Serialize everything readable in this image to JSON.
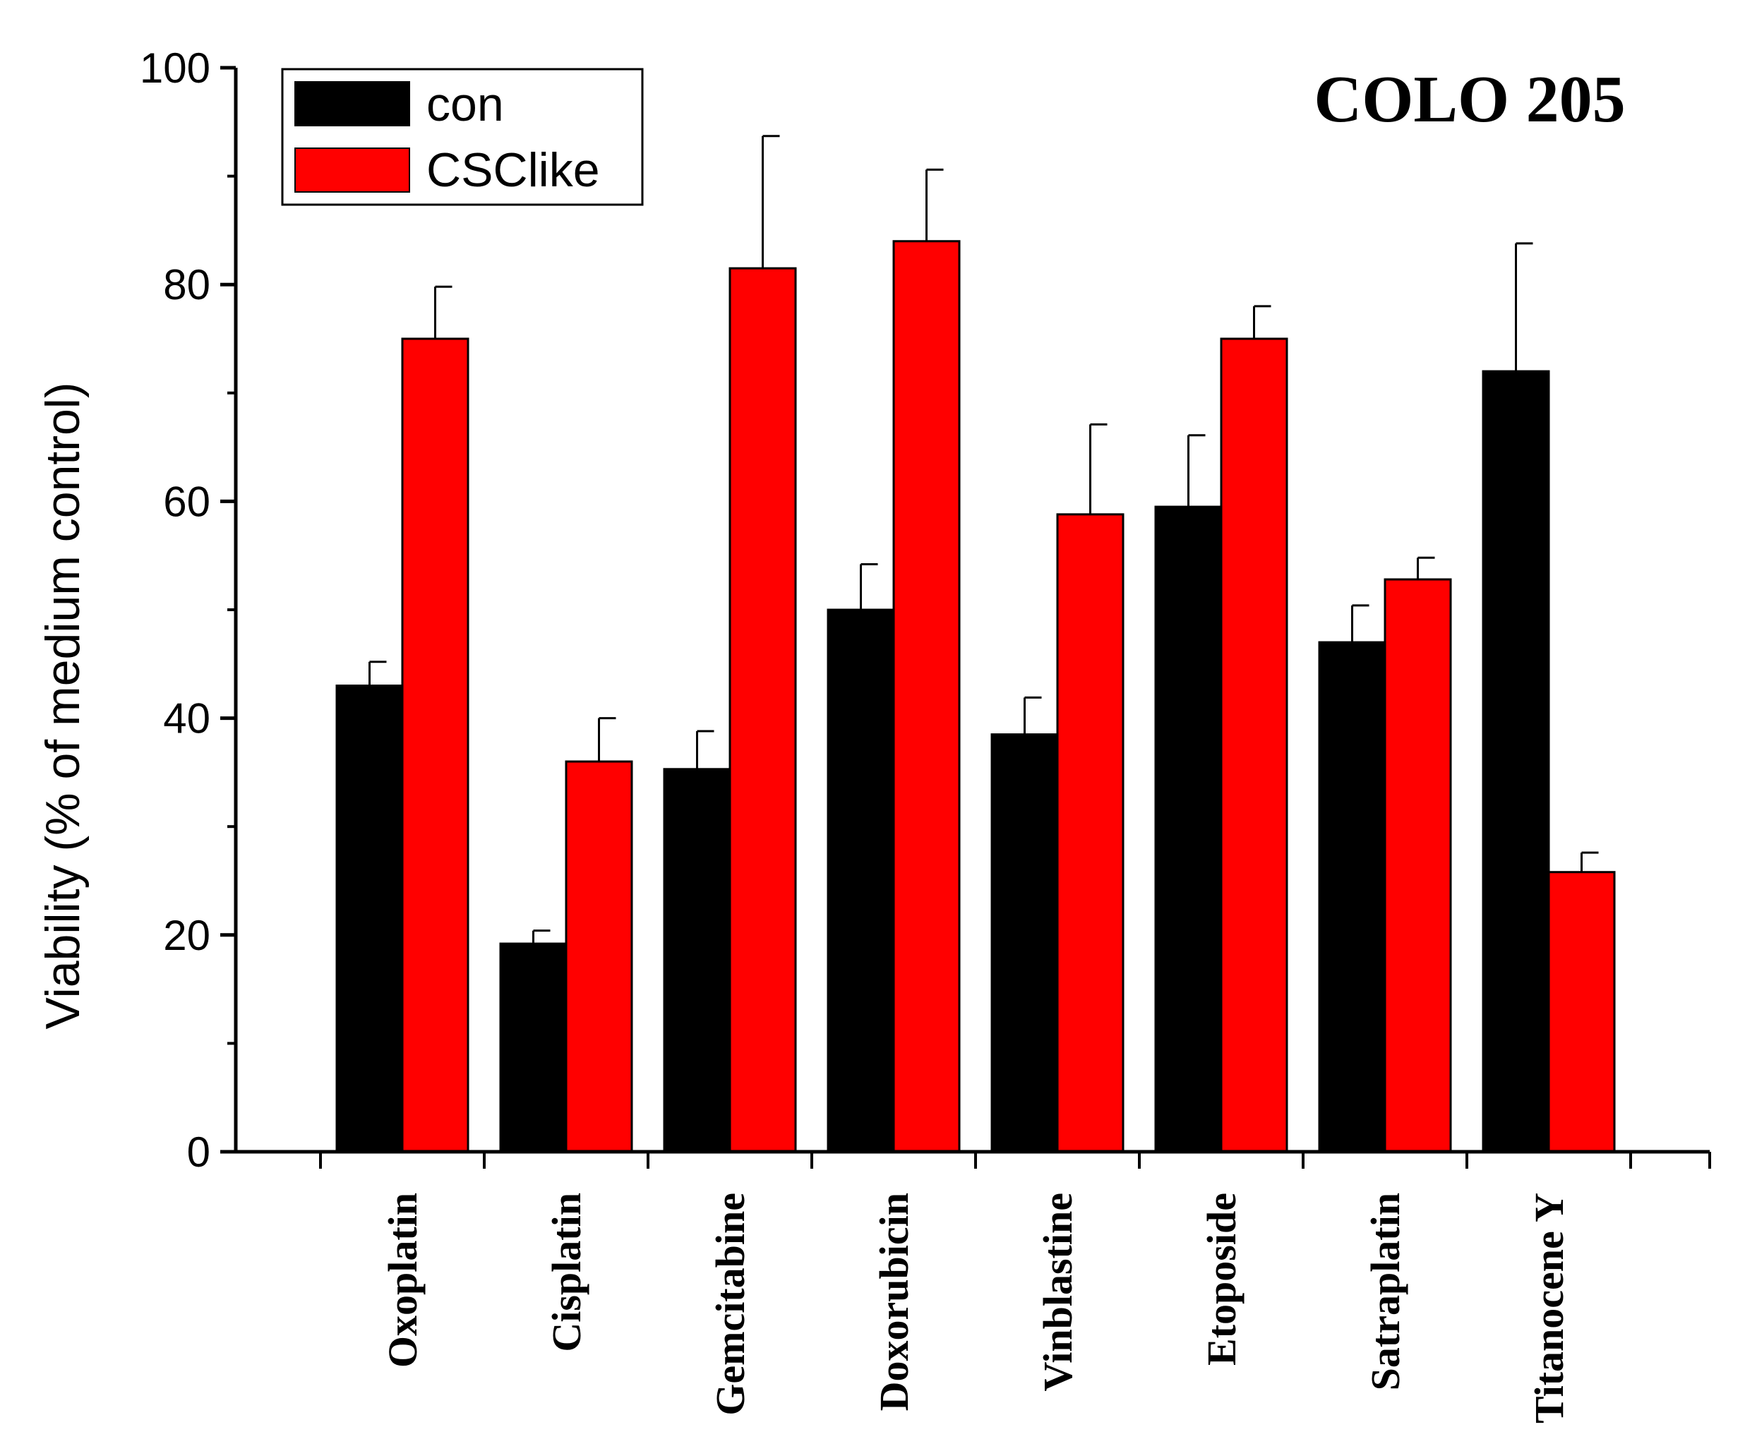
{
  "chart_data": {
    "type": "bar",
    "title": "COLO 205",
    "xlabel": "",
    "ylabel": "Viability (% of medium control)",
    "ylim": [
      0,
      100
    ],
    "yticks": [
      0,
      20,
      40,
      60,
      80,
      100
    ],
    "categories": [
      "Oxoplatin",
      "Cisplatin",
      "Gemcitabine",
      "Doxorubicin",
      "Vinblastine",
      "Etoposide",
      "Satraplatin",
      "Titanocene Y"
    ],
    "series": [
      {
        "name": "con",
        "color": "#000000",
        "values": [
          43,
          19.2,
          35.3,
          50,
          38.5,
          59.5,
          47,
          72
        ],
        "errors": [
          2.2,
          1.2,
          3.5,
          4.2,
          3.4,
          6.6,
          3.4,
          11.8
        ]
      },
      {
        "name": "CSClike",
        "color": "#ff0000",
        "values": [
          75,
          36,
          81.5,
          84,
          58.8,
          75,
          52.8,
          25.8
        ],
        "errors": [
          4.8,
          4,
          12.2,
          6.6,
          8.3,
          3,
          2,
          1.8
        ]
      }
    ],
    "legend": {
      "position": "top-left",
      "entries": [
        "con",
        "CSClike"
      ]
    }
  }
}
